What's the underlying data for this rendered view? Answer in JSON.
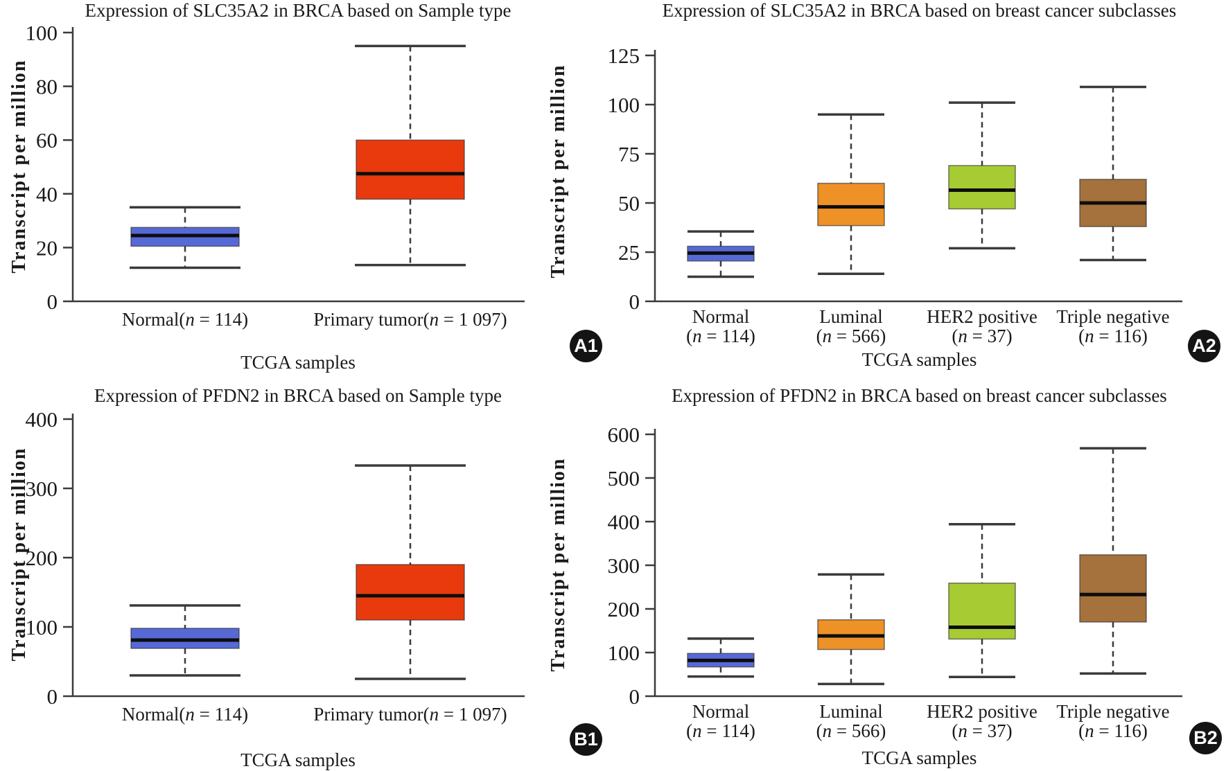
{
  "figure": {
    "background": "#ffffff"
  },
  "colors": {
    "normal_blue": "#5669d6",
    "primary_tumor_red": "#e93a0e",
    "luminal_orange": "#ee9127",
    "her2_green": "#a6cb33",
    "triple_negative_brown": "#a5713c",
    "median_line": "#0d0d0d",
    "axis": "#3a3a3a",
    "badge_background": "#141414",
    "badge_text": "#ffffff"
  },
  "chart_data": [
    {
      "type": "boxplot",
      "panel_id": "A1",
      "badge": "A1",
      "title": "Expression of SLC35A2 in BRCA based on Sample type",
      "xlabel": "TCGA samples",
      "ylabel": "Transcript per million",
      "ylim": [
        0,
        100
      ],
      "yticks": [
        0,
        20,
        40,
        60,
        80,
        100
      ],
      "grid": false,
      "categories": [
        {
          "name": "Normal",
          "n": "114",
          "color": "#5669d6",
          "stats": {
            "min": 12.5,
            "q1": 20.5,
            "median": 24.5,
            "q3": 27.5,
            "max": 35
          }
        },
        {
          "name": "Primary tumor",
          "n": "1 097",
          "color": "#e93a0e",
          "stats": {
            "min": 13.5,
            "q1": 38,
            "median": 47.5,
            "q3": 60,
            "max": 95
          }
        }
      ]
    },
    {
      "type": "boxplot",
      "panel_id": "A2",
      "badge": "A2",
      "title": "Expression of SLC35A2 in BRCA based on breast cancer subclasses",
      "xlabel": "TCGA samples",
      "ylabel": "Transcript per million",
      "ylim": [
        0,
        125
      ],
      "yticks": [
        0,
        25,
        50,
        75,
        100,
        125
      ],
      "grid": false,
      "categories": [
        {
          "name": "Normal",
          "n": "114",
          "color": "#5669d6",
          "stats": {
            "min": 12.5,
            "q1": 20.5,
            "median": 24.5,
            "q3": 28,
            "max": 35.5
          }
        },
        {
          "name": "Luminal",
          "n": "566",
          "color": "#ee9127",
          "stats": {
            "min": 14,
            "q1": 38.5,
            "median": 48,
            "q3": 60,
            "max": 95
          }
        },
        {
          "name": "HER2 positive",
          "n": "37",
          "color": "#a6cb33",
          "stats": {
            "min": 27,
            "q1": 47,
            "median": 56.5,
            "q3": 69,
            "max": 101
          }
        },
        {
          "name": "Triple negative",
          "n": "116",
          "color": "#a5713c",
          "stats": {
            "min": 21,
            "q1": 38,
            "median": 50,
            "q3": 62,
            "max": 109
          }
        }
      ]
    },
    {
      "type": "boxplot",
      "panel_id": "B1",
      "badge": "B1",
      "title": "Expression of PFDN2 in BRCA based on Sample type",
      "xlabel": "TCGA samples",
      "ylabel": "Transcript per million",
      "ylim": [
        0,
        400
      ],
      "yticks": [
        0,
        100,
        200,
        300,
        400
      ],
      "grid": false,
      "categories": [
        {
          "name": "Normal",
          "n": "114",
          "color": "#5669d6",
          "stats": {
            "min": 30,
            "q1": 69,
            "median": 81,
            "q3": 98,
            "max": 131
          }
        },
        {
          "name": "Primary tumor",
          "n": "1 097",
          "color": "#e93a0e",
          "stats": {
            "min": 25,
            "q1": 110,
            "median": 145,
            "q3": 190,
            "max": 333
          }
        }
      ]
    },
    {
      "type": "boxplot",
      "panel_id": "B2",
      "badge": "B2",
      "title": "Expression of PFDN2 in BRCA based on breast cancer subclasses",
      "xlabel": "TCGA samples",
      "ylabel": "Transcript per million",
      "ylim": [
        0,
        600
      ],
      "yticks": [
        0,
        100,
        200,
        300,
        400,
        500,
        600
      ],
      "grid": false,
      "categories": [
        {
          "name": "Normal",
          "n": "114",
          "color": "#5669d6",
          "stats": {
            "min": 45,
            "q1": 67,
            "median": 82,
            "q3": 98,
            "max": 132
          }
        },
        {
          "name": "Luminal",
          "n": "566",
          "color": "#ee9127",
          "stats": {
            "min": 28,
            "q1": 107,
            "median": 138,
            "q3": 175,
            "max": 279
          }
        },
        {
          "name": "HER2 positive",
          "n": "37",
          "color": "#a6cb33",
          "stats": {
            "min": 44,
            "q1": 131,
            "median": 158,
            "q3": 259,
            "max": 394
          }
        },
        {
          "name": "Triple negative",
          "n": "116",
          "color": "#a5713c",
          "stats": {
            "min": 52,
            "q1": 170,
            "median": 233,
            "q3": 324,
            "max": 568
          }
        }
      ]
    }
  ]
}
